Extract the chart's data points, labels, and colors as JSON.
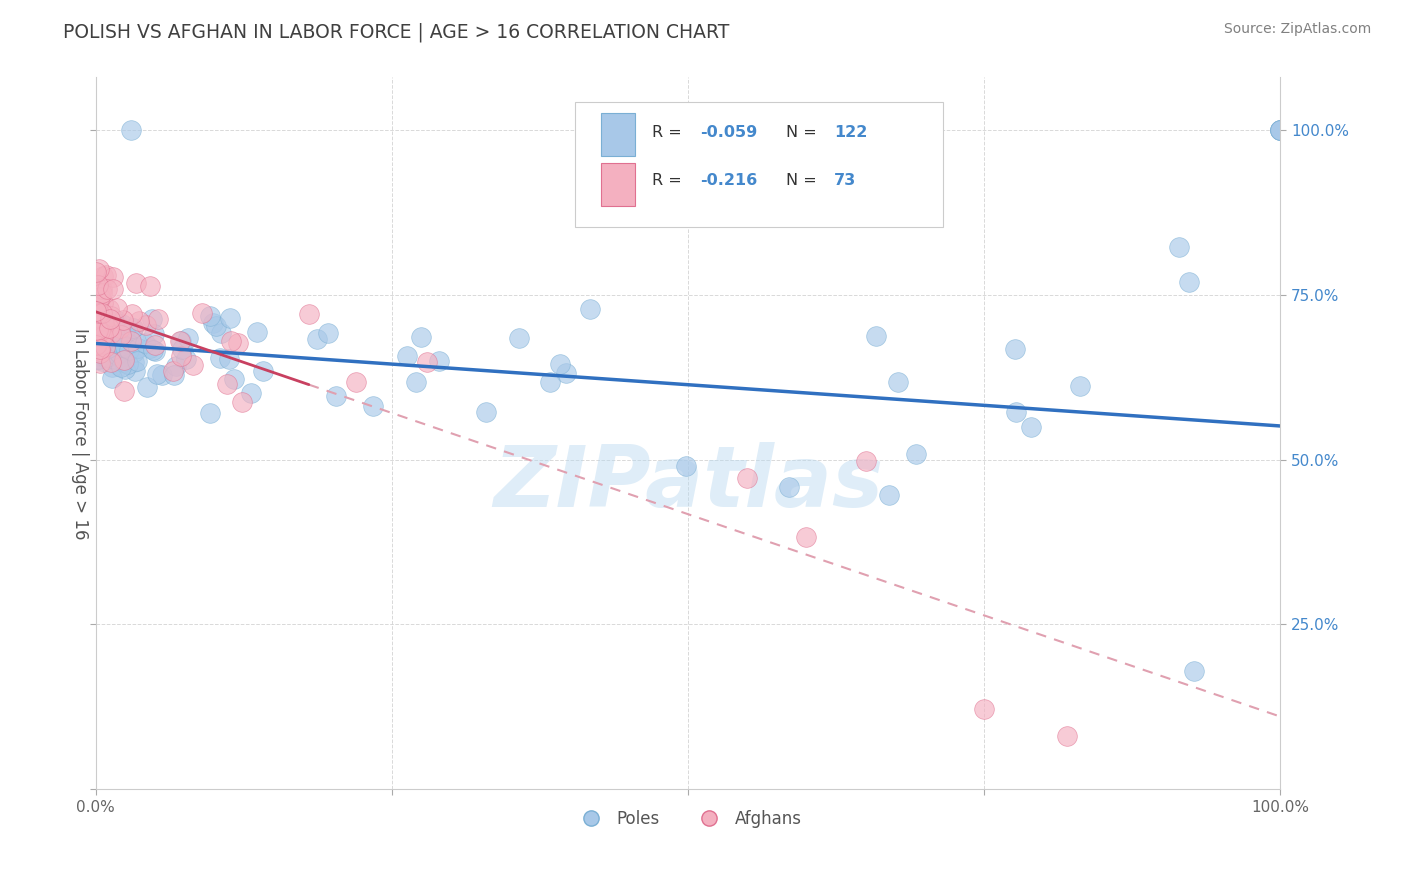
{
  "title": "POLISH VS AFGHAN IN LABOR FORCE | AGE > 16 CORRELATION CHART",
  "source_text": "Source: ZipAtlas.com",
  "ylabel": "In Labor Force | Age > 16",
  "watermark": "ZIPatlas",
  "title_color": "#404040",
  "source_color": "#808080",
  "grid_color": "#d0d0d0",
  "scatter_poles_color": "#a8c8e8",
  "scatter_poles_edge": "#7aafd4",
  "scatter_afghans_color": "#f4b0c0",
  "scatter_afghans_edge": "#e07090",
  "poles_line_color": "#3070c0",
  "afghans_line_solid_color": "#c84060",
  "afghans_line_dash_color": "#e0a0b0",
  "legend_R1": "-0.059",
  "legend_N1": "122",
  "legend_R2": "-0.216",
  "legend_N2": "73",
  "poles_label": "Poles",
  "afghans_label": "Afghans",
  "xlim": [
    0.0,
    1.0
  ],
  "ylim": [
    0.0,
    1.08
  ],
  "y_ticks_right": [
    0.25,
    0.5,
    0.75,
    1.0
  ],
  "y_tick_labels_right": [
    "25.0%",
    "50.0%",
    "75.0%",
    "100.0%"
  ]
}
